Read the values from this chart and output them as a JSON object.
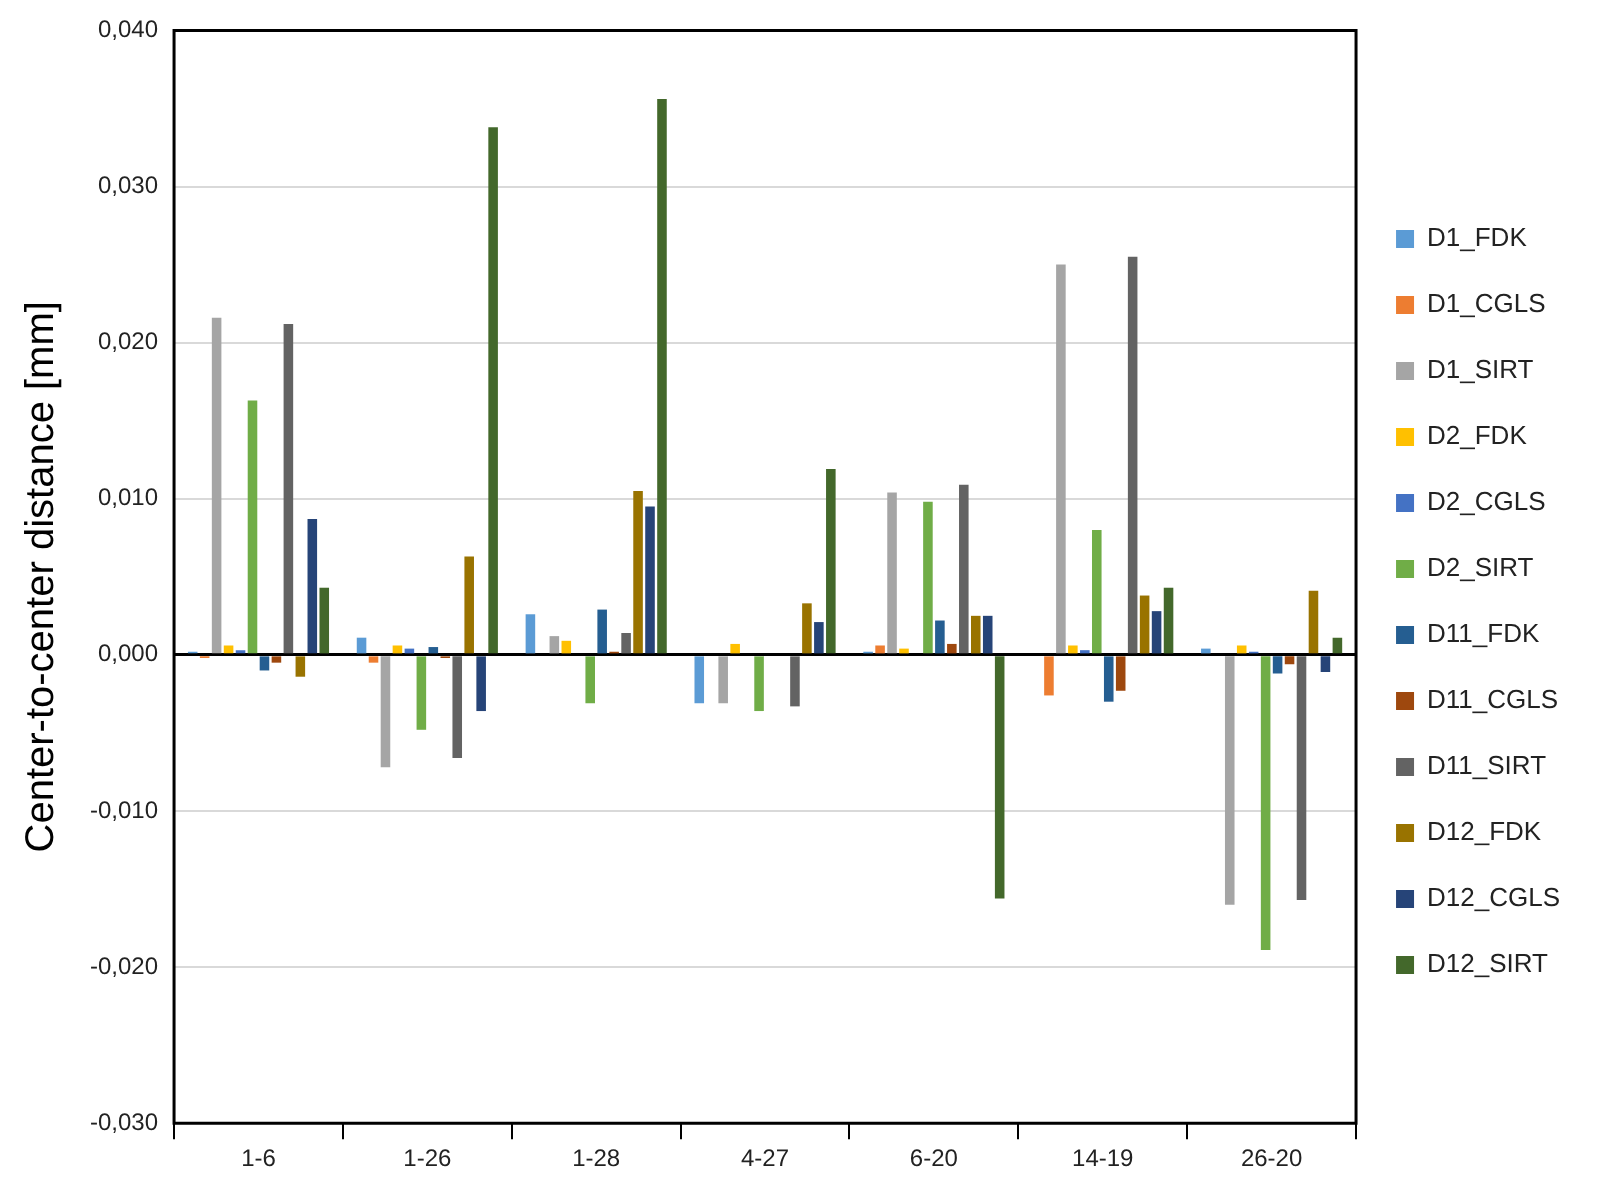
{
  "chart_data": {
    "type": "bar",
    "ylabel": "Center-to-center distance [mm]",
    "categories": [
      "1-6",
      "1-26",
      "1-28",
      "4-27",
      "6-20",
      "14-19",
      "26-20"
    ],
    "series": [
      {
        "name": "D1_FDK",
        "color": "#5b9bd5",
        "values": [
          0.0002,
          0.0011,
          0.0026,
          -0.0031,
          0.0002,
          0,
          0.0004
        ]
      },
      {
        "name": "D1_CGLS",
        "color": "#ed7d31",
        "values": [
          -0.0002,
          -0.0005,
          0,
          0,
          0.0006,
          -0.0026,
          0
        ]
      },
      {
        "name": "D1_SIRT",
        "color": "#a5a5a5",
        "values": [
          0.0216,
          -0.0072,
          0.0012,
          -0.0031,
          0.0104,
          0.025,
          -0.016
        ]
      },
      {
        "name": "D2_FDK",
        "color": "#ffc000",
        "values": [
          0.0006,
          0.0006,
          0.0009,
          0.0007,
          0.0004,
          0.0006,
          0.0006
        ]
      },
      {
        "name": "D2_CGLS",
        "color": "#4472c4",
        "values": [
          0.0003,
          0.0004,
          0,
          0,
          0,
          0.0003,
          0.0002
        ]
      },
      {
        "name": "D2_SIRT",
        "color": "#70ad47",
        "values": [
          0.0163,
          -0.0048,
          -0.0031,
          -0.0036,
          0.0098,
          0.008,
          -0.0189
        ]
      },
      {
        "name": "D11_FDK",
        "color": "#255e91",
        "values": [
          -0.001,
          0.0005,
          0.0029,
          0,
          0.0022,
          -0.003,
          -0.0012
        ]
      },
      {
        "name": "D11_CGLS",
        "color": "#9e480e",
        "values": [
          -0.0005,
          -0.0002,
          0.0002,
          0,
          0.0007,
          -0.0023,
          -0.0006
        ]
      },
      {
        "name": "D11_SIRT",
        "color": "#636363",
        "values": [
          0.0212,
          -0.0066,
          0.0014,
          -0.0033,
          0.0109,
          0.0255,
          -0.0157
        ]
      },
      {
        "name": "D12_FDK",
        "color": "#997300",
        "values": [
          -0.0014,
          0.0063,
          0.0105,
          0.0033,
          0.0025,
          0.0038,
          0.0041
        ]
      },
      {
        "name": "D12_CGLS",
        "color": "#264478",
        "values": [
          0.0087,
          -0.0036,
          0.0095,
          0.0021,
          0.0025,
          0.0028,
          -0.0011
        ]
      },
      {
        "name": "D12_SIRT",
        "color": "#43682b",
        "values": [
          0.0043,
          0.0338,
          0.0356,
          0.0119,
          -0.0156,
          0.0043,
          0.0011
        ]
      }
    ],
    "ylim": [
      -0.03,
      0.04
    ],
    "yticks": [
      {
        "value": -0.03,
        "label": "-0,030"
      },
      {
        "value": -0.02,
        "label": "-0,020"
      },
      {
        "value": -0.01,
        "label": "-0,010"
      },
      {
        "value": 0,
        "label": "0,000"
      },
      {
        "value": 0.01,
        "label": "0,010"
      },
      {
        "value": 0.02,
        "label": "0,020"
      },
      {
        "value": 0.03,
        "label": "0,030"
      },
      {
        "value": 0.04,
        "label": "0,040"
      }
    ],
    "grid": "y",
    "legend": "right"
  }
}
